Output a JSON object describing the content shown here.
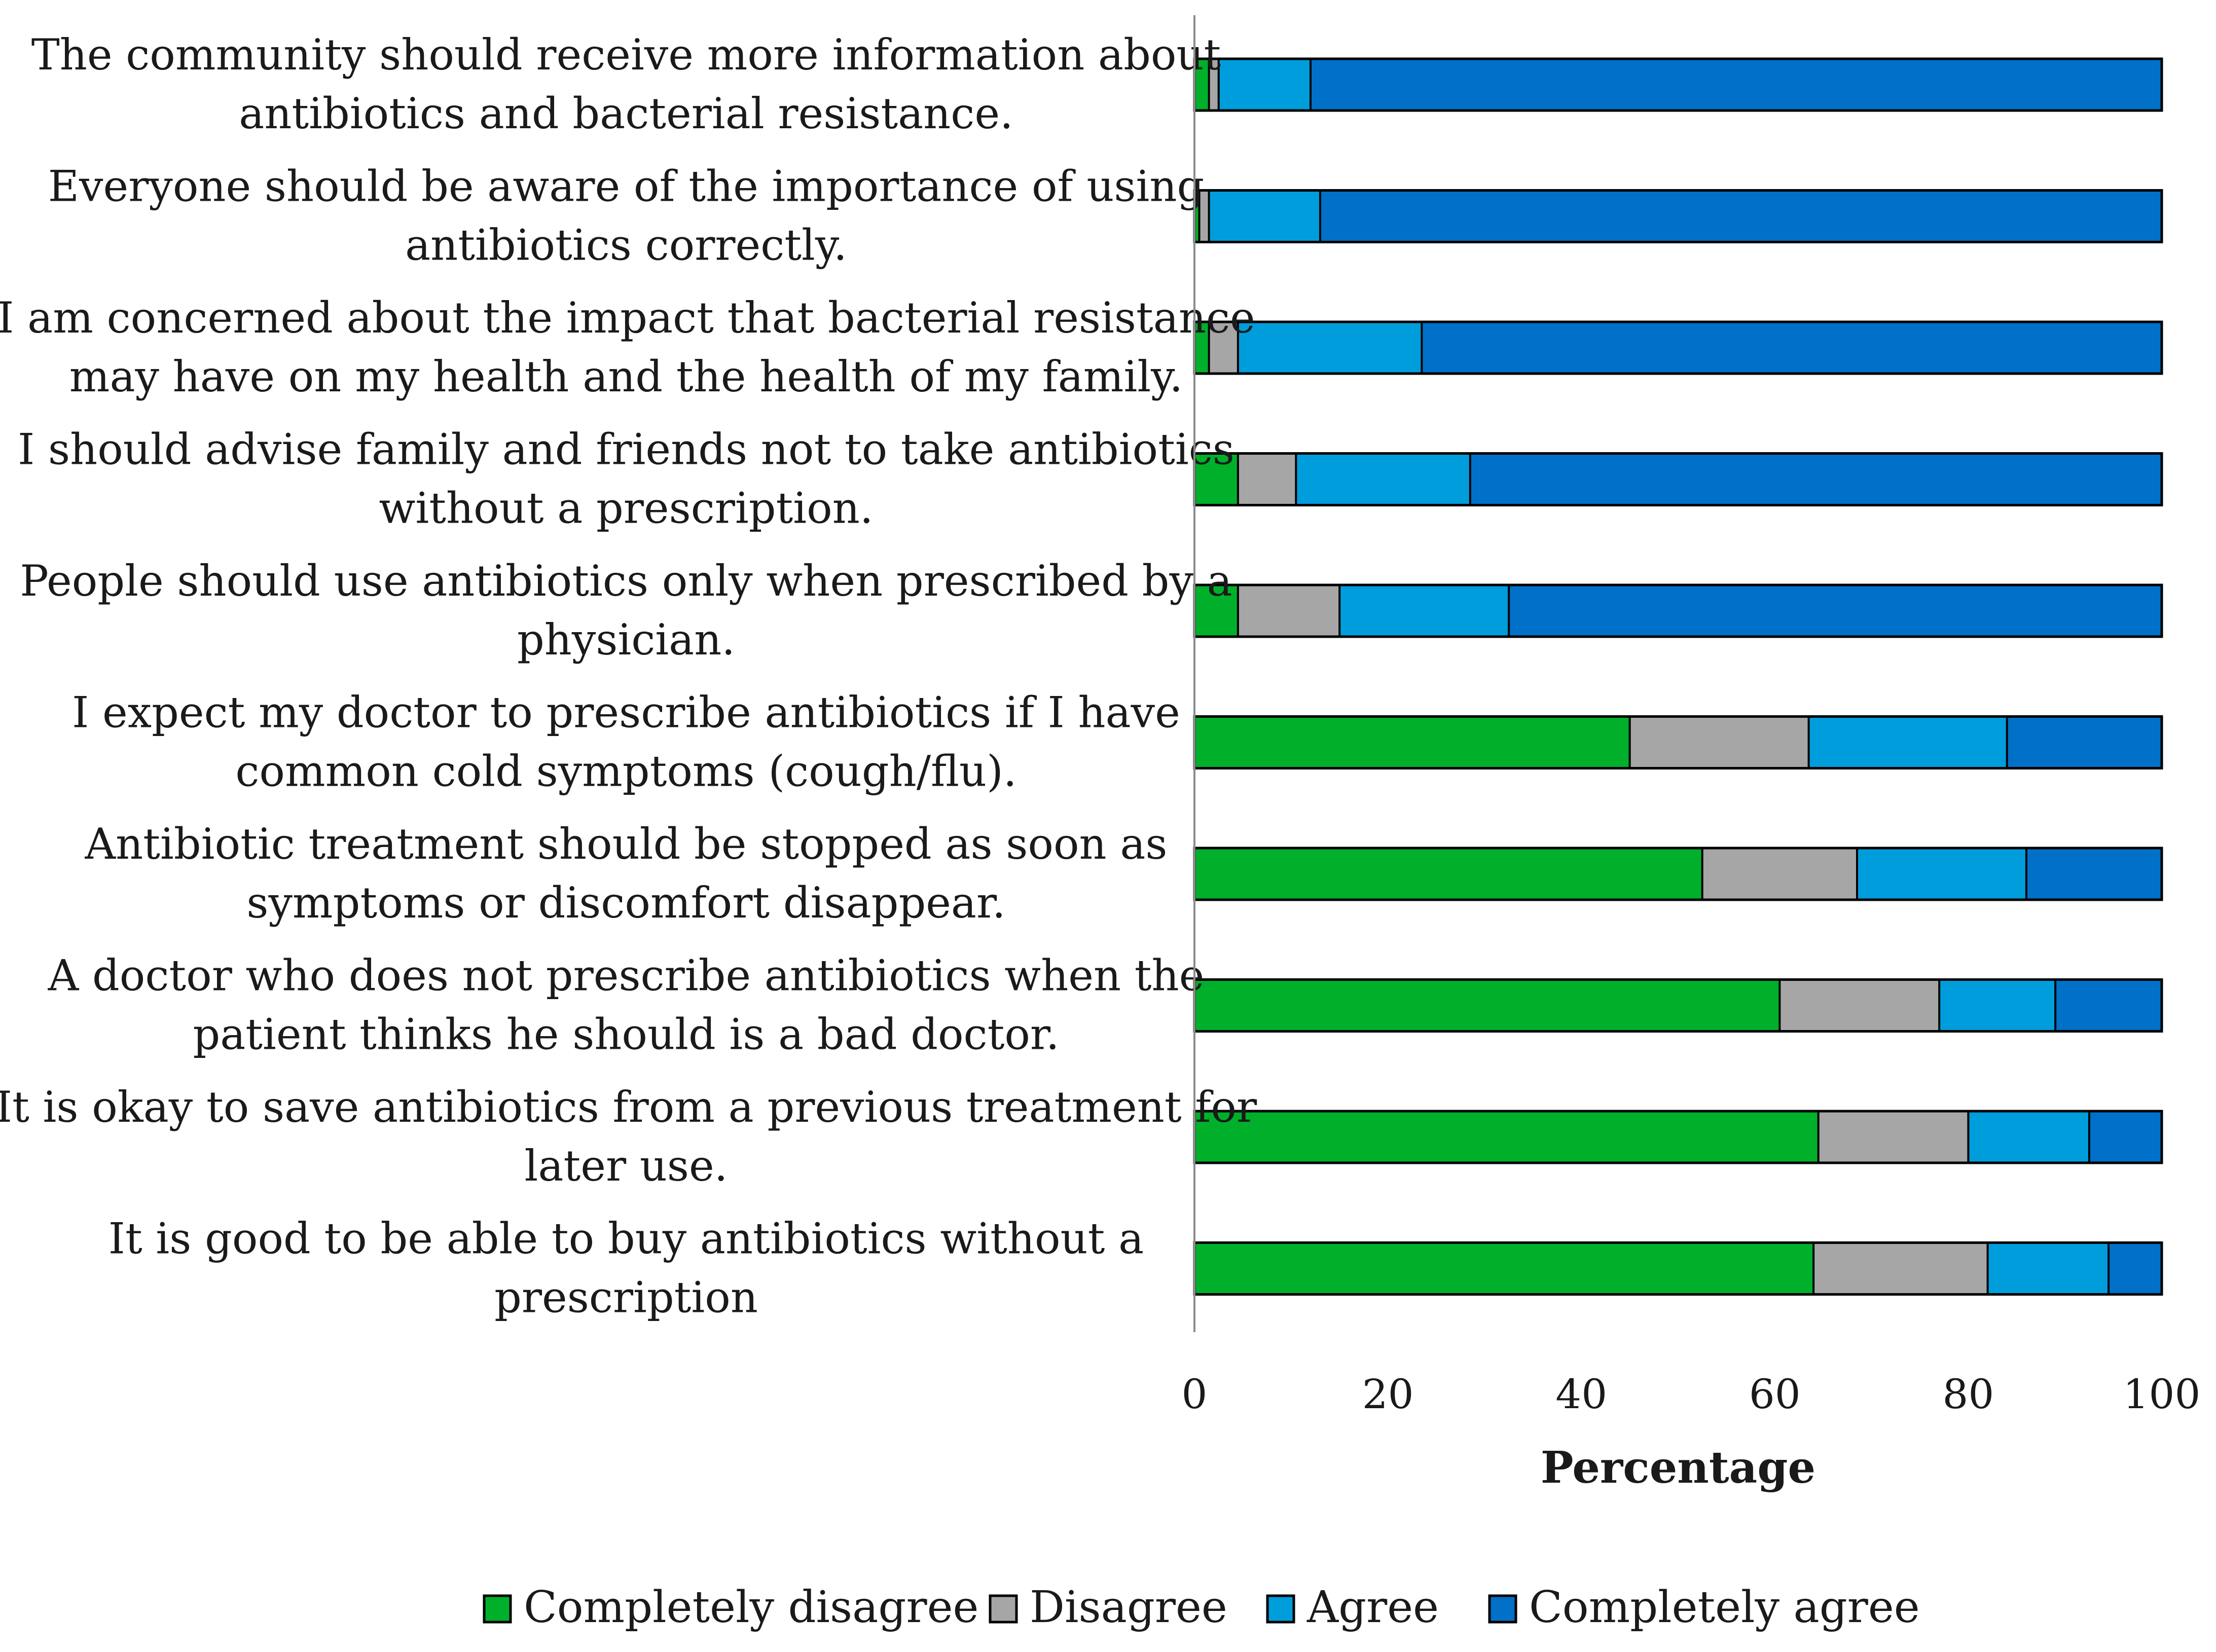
{
  "chart_data": {
    "type": "bar",
    "orientation": "horizontal",
    "stacked": true,
    "title": "",
    "xlabel": "Percentage",
    "ylabel": "",
    "xlim": [
      0,
      100
    ],
    "xticks": [
      0,
      20,
      40,
      60,
      80,
      100
    ],
    "grid": false,
    "legend_position": "bottom",
    "categories": [
      [
        "The community should receive more information about",
        "antibiotics and bacterial resistance."
      ],
      [
        "Everyone should be aware of the importance of using",
        "antibiotics correctly."
      ],
      [
        "I am concerned about the impact that bacterial resistance",
        "may have on my health and the health of my family."
      ],
      [
        "I should advise family and friends not to take antibiotics",
        "without a prescription."
      ],
      [
        "People should use antibiotics only when prescribed by a",
        "physician."
      ],
      [
        "I expect my doctor to prescribe antibiotics if I have",
        "common cold symptoms (cough/flu)."
      ],
      [
        "Antibiotic treatment should be stopped as soon as",
        "symptoms or discomfort disappear."
      ],
      [
        "A doctor who does not prescribe antibiotics when the",
        "patient thinks he should is a bad doctor."
      ],
      [
        "It is okay to save antibiotics from a previous treatment for",
        "later use."
      ],
      [
        "It is good to be able to buy antibiotics without a",
        "prescription"
      ]
    ],
    "series": [
      {
        "name": "Completely disagree",
        "color": "#00b02a",
        "values": [
          1.5,
          0.5,
          1.5,
          4.5,
          4.5,
          45,
          52.5,
          60.5,
          64.5,
          64
        ]
      },
      {
        "name": "Disagree",
        "color": "#a6a6a6",
        "values": [
          1,
          1,
          3,
          6,
          10.5,
          18.5,
          16,
          16.5,
          15.5,
          18
        ]
      },
      {
        "name": "Agree",
        "color": "#009ddc",
        "values": [
          9.5,
          11.5,
          19,
          18,
          17.5,
          20.5,
          17.5,
          12,
          12.5,
          12.5
        ]
      },
      {
        "name": "Completely agree",
        "color": "#0070c8",
        "values": [
          88,
          87,
          76.5,
          71.5,
          67.5,
          16,
          14,
          11,
          7.5,
          5.5
        ]
      }
    ]
  }
}
